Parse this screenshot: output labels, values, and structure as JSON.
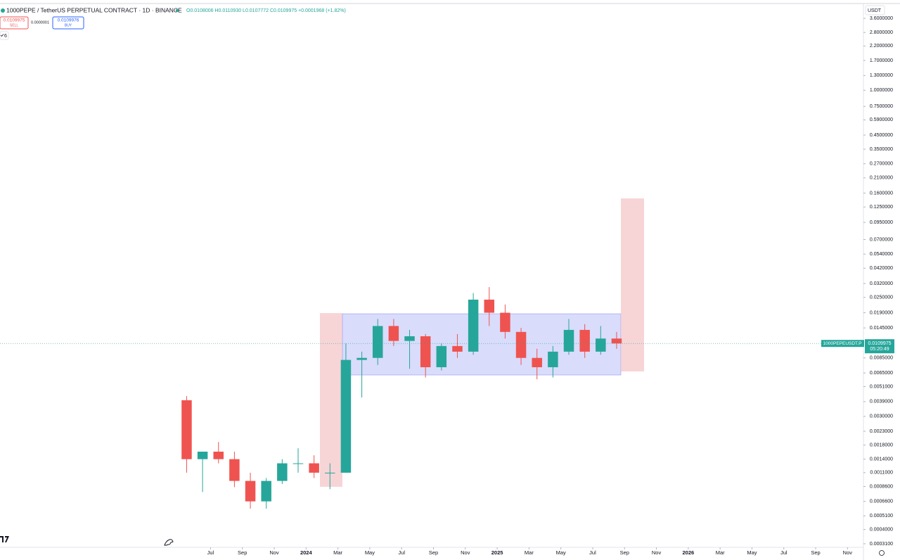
{
  "header": {
    "title": "1000PEPE / TetherUS PERPETUAL CONTRACT · 1D · BINANCE",
    "ohlc": "O0.0108006 H0.0110930 L0.0107772 C0.0109975 +0.0001968 (+1.82%)",
    "currency": "USDT"
  },
  "trade_panel": {
    "sell_price": 0.0109975,
    "sell_label": "SELL",
    "spread": "0.0000001",
    "buy_price": 0.0109976,
    "buy_label": "BUY",
    "indicator_count": 6
  },
  "chart_data": {
    "type": "candlestick",
    "x": [
      "2023-05",
      "2023-06",
      "2023-07",
      "2023-08",
      "2023-09",
      "2023-10",
      "2023-11",
      "2023-12",
      "2024-01",
      "2024-02",
      "2024-03",
      "2024-04",
      "2024-05",
      "2024-06",
      "2024-07",
      "2024-08",
      "2024-09",
      "2024-10",
      "2024-11",
      "2024-12",
      "2025-01",
      "2025-02",
      "2025-03",
      "2025-04",
      "2025-05",
      "2025-06",
      "2025-07",
      "2025-08"
    ],
    "open": [
      0.004,
      0.0014,
      0.0016,
      0.0014,
      0.00095,
      0.00066,
      0.00095,
      0.0013,
      0.0013,
      0.0011,
      0.0011,
      0.0082,
      0.0085,
      0.015,
      0.0115,
      0.0125,
      0.0072,
      0.0105,
      0.0095,
      0.024,
      0.019,
      0.0135,
      0.0085,
      0.0072,
      0.0095,
      0.014,
      0.0095,
      0.012
    ],
    "high": [
      0.0043,
      0.0016,
      0.0019,
      0.0016,
      0.0011,
      0.001,
      0.0014,
      0.0017,
      0.0015,
      0.0013,
      0.011,
      0.0095,
      0.017,
      0.017,
      0.014,
      0.013,
      0.011,
      0.013,
      0.027,
      0.03,
      0.022,
      0.0145,
      0.01,
      0.0105,
      0.017,
      0.0155,
      0.015,
      0.0135
    ],
    "low": [
      0.0011,
      0.00078,
      0.0013,
      0.00085,
      0.00058,
      0.00058,
      0.0009,
      0.0011,
      0.001,
      0.00082,
      0.0011,
      0.0042,
      0.0075,
      0.0105,
      0.007,
      0.006,
      0.0068,
      0.0085,
      0.009,
      0.015,
      0.012,
      0.0075,
      0.0058,
      0.006,
      0.009,
      0.0085,
      0.009,
      0.01
    ],
    "close": [
      0.0014,
      0.0016,
      0.0014,
      0.00095,
      0.00066,
      0.00095,
      0.0013,
      0.0013,
      0.0011,
      0.0011,
      0.0082,
      0.0085,
      0.015,
      0.0115,
      0.0125,
      0.0072,
      0.0105,
      0.0095,
      0.024,
      0.019,
      0.0135,
      0.0085,
      0.0072,
      0.0095,
      0.014,
      0.0095,
      0.012,
      0.0109975
    ],
    "up_color": "#26a69a",
    "down_color": "#ef5350",
    "log_scale": true,
    "ylim": [
      0.000291,
      4.63
    ],
    "yticks": [
      {
        "value": 3.6,
        "label": "3.6000000"
      },
      {
        "value": 2.8,
        "label": "2.8000000"
      },
      {
        "value": 2.2,
        "label": "2.2000000"
      },
      {
        "value": 1.7,
        "label": "1.7000000"
      },
      {
        "value": 1.3,
        "label": "1.3000000"
      },
      {
        "value": 1.0,
        "label": "1.0000000"
      },
      {
        "value": 0.75,
        "label": "0.7500000"
      },
      {
        "value": 0.59,
        "label": "0.5900000"
      },
      {
        "value": 0.45,
        "label": "0.4500000"
      },
      {
        "value": 0.35,
        "label": "0.3500000"
      },
      {
        "value": 0.27,
        "label": "0.2700000"
      },
      {
        "value": 0.21,
        "label": "0.2100000"
      },
      {
        "value": 0.16,
        "label": "0.1600000"
      },
      {
        "value": 0.125,
        "label": "0.1250000"
      },
      {
        "value": 0.095,
        "label": "0.0950000"
      },
      {
        "value": 0.07,
        "label": "0.0700000"
      },
      {
        "value": 0.054,
        "label": "0.0540000"
      },
      {
        "value": 0.042,
        "label": "0.0420000"
      },
      {
        "value": 0.032,
        "label": "0.0320000"
      },
      {
        "value": 0.025,
        "label": "0.0250000"
      },
      {
        "value": 0.019,
        "label": "0.0190000"
      },
      {
        "value": 0.0145,
        "label": "0.0145000"
      },
      {
        "value": 0.0085,
        "label": "0.0085000"
      },
      {
        "value": 0.0065,
        "label": "0.0065000"
      },
      {
        "value": 0.0051,
        "label": "0.0051000"
      },
      {
        "value": 0.0039,
        "label": "0.0039000"
      },
      {
        "value": 0.003,
        "label": "0.0030000"
      },
      {
        "value": 0.0023,
        "label": "0.0023000"
      },
      {
        "value": 0.0018,
        "label": "0.0018000"
      },
      {
        "value": 0.0014,
        "label": "0.0014000"
      },
      {
        "value": 0.0011,
        "label": "0.0011000"
      },
      {
        "value": 0.00086,
        "label": "0.0008600"
      },
      {
        "value": 0.00066,
        "label": "0.0006600"
      },
      {
        "value": 0.00051,
        "label": "0.0005100"
      },
      {
        "value": 0.0004,
        "label": "0.0004000"
      },
      {
        "value": 0.00031,
        "label": "0.0003100"
      }
    ],
    "xlim": [
      "2022-06",
      "2026-12"
    ],
    "xticks": [
      {
        "value": "2023-07",
        "label": "Jul"
      },
      {
        "value": "2023-09",
        "label": "Sep"
      },
      {
        "value": "2023-11",
        "label": "Nov"
      },
      {
        "value": "2024-01",
        "label": "2024"
      },
      {
        "value": "2024-03",
        "label": "Mar"
      },
      {
        "value": "2024-05",
        "label": "May"
      },
      {
        "value": "2024-07",
        "label": "Jul"
      },
      {
        "value": "2024-09",
        "label": "Sep"
      },
      {
        "value": "2024-11",
        "label": "Nov"
      },
      {
        "value": "2025-01",
        "label": "2025"
      },
      {
        "value": "2025-03",
        "label": "Mar"
      },
      {
        "value": "2025-05",
        "label": "May"
      },
      {
        "value": "2025-07",
        "label": "Jul"
      },
      {
        "value": "2025-09",
        "label": "Sep"
      },
      {
        "value": "2025-11",
        "label": "Nov"
      },
      {
        "value": "2026-01",
        "label": "2026"
      },
      {
        "value": "2026-03",
        "label": "Mar"
      },
      {
        "value": "2026-05",
        "label": "May"
      },
      {
        "value": "2026-07",
        "label": "Jul"
      },
      {
        "value": "2026-09",
        "label": "Sep"
      },
      {
        "value": "2026-11",
        "label": "Nov"
      }
    ],
    "last_price": 0.0109975,
    "symbol_label": "1000PEPEUSDT.P",
    "countdown": "05:20:49"
  }
}
